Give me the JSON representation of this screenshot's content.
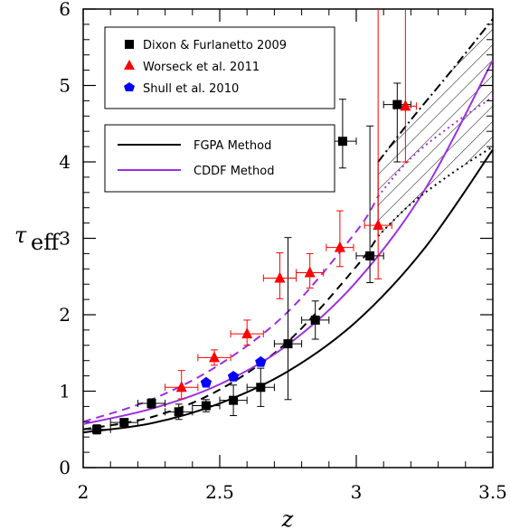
{
  "chart_data": {
    "type": "scatter",
    "xlabel": "z",
    "ylabel_main": "τ",
    "ylabel_sub": "eff",
    "xlim": [
      2.0,
      3.5
    ],
    "ylim": [
      0,
      6
    ],
    "xticks": [
      2,
      2.5,
      3,
      3.5
    ],
    "xtick_labels": [
      "2",
      "2.5",
      "3",
      "3.5"
    ],
    "yticks": [
      0,
      1,
      2,
      3,
      4,
      5,
      6
    ],
    "ytick_labels": [
      "0",
      "1",
      "2",
      "3",
      "4",
      "5",
      "6"
    ],
    "grid": false,
    "legend_points": {
      "placement": "top-left",
      "entries": [
        {
          "label": "Dixon & Furlanetto 2009",
          "marker": "square",
          "color": "#000000"
        },
        {
          "label": "Worseck et al. 2011",
          "marker": "triangle",
          "color": "#ff0000"
        },
        {
          "label": "Shull et al. 2010",
          "marker": "pentagon",
          "color": "#0000ff"
        }
      ]
    },
    "legend_lines": {
      "placement": "upper-left",
      "entries": [
        {
          "label": "FGPA Method",
          "color": "#000000"
        },
        {
          "label": "CDDF Method",
          "color": "#9b30e0"
        }
      ]
    },
    "series": [
      {
        "name": "Dixon & Furlanetto 2009",
        "marker": "square",
        "color": "#000000",
        "points": [
          {
            "x": 2.05,
            "y": 0.5,
            "xerr": 0.05,
            "yerr": [
              0.06,
              0.06
            ]
          },
          {
            "x": 2.15,
            "y": 0.59,
            "xerr": 0.05,
            "yerr": [
              0.05,
              0.05
            ]
          },
          {
            "x": 2.25,
            "y": 0.84,
            "xerr": 0.05,
            "yerr": [
              0.06,
              0.06
            ]
          },
          {
            "x": 2.35,
            "y": 0.73,
            "xerr": 0.05,
            "yerr": [
              0.1,
              0.1
            ]
          },
          {
            "x": 2.45,
            "y": 0.81,
            "xerr": 0.05,
            "yerr": [
              0.08,
              0.08
            ]
          },
          {
            "x": 2.55,
            "y": 0.88,
            "xerr": 0.05,
            "yerr": [
              0.2,
              0.2
            ]
          },
          {
            "x": 2.65,
            "y": 1.05,
            "xerr": 0.05,
            "yerr": [
              0.25,
              0.25
            ]
          },
          {
            "x": 2.75,
            "y": 1.62,
            "xerr": 0.05,
            "yerr": [
              0.73,
              1.39
            ]
          },
          {
            "x": 2.85,
            "y": 1.93,
            "xerr": 0.05,
            "yerr": [
              0.25,
              0.25
            ]
          },
          {
            "x": 2.95,
            "y": 4.27,
            "xerr": 0.05,
            "yerr": [
              0.35,
              0.55
            ]
          },
          {
            "x": 3.05,
            "y": 2.77,
            "xerr": 0.05,
            "yerr": [
              0.35,
              1.7
            ]
          },
          {
            "x": 3.15,
            "y": 4.75,
            "xerr": 0.05,
            "yerr": [
              0.75,
              0.28
            ]
          }
        ]
      },
      {
        "name": "Worseck et al. 2011",
        "marker": "triangle",
        "color": "#ff0000",
        "points": [
          {
            "x": 2.36,
            "y": 1.05,
            "xerr": 0.06,
            "yerr": [
              0.15,
              0.22
            ]
          },
          {
            "x": 2.48,
            "y": 1.44,
            "xerr": 0.06,
            "yerr": [
              0.1,
              0.1
            ]
          },
          {
            "x": 2.6,
            "y": 1.75,
            "xerr": 0.06,
            "yerr": [
              0.15,
              0.18
            ]
          },
          {
            "x": 2.72,
            "y": 2.48,
            "xerr": 0.06,
            "yerr": [
              0.27,
              0.33
            ]
          },
          {
            "x": 2.83,
            "y": 2.55,
            "xerr": 0.05,
            "yerr": [
              0.2,
              0.25
            ]
          },
          {
            "x": 2.94,
            "y": 2.88,
            "xerr": 0.05,
            "yerr": [
              0.25,
              0.48
            ]
          },
          {
            "x": 3.08,
            "y": 3.17,
            "xerr": 0.05,
            "yerr": [
              0.7,
              3.0
            ]
          },
          {
            "x": 3.18,
            "y": 4.73,
            "xerr": 0.04,
            "yerr": [
              0.73,
              1.5
            ]
          }
        ]
      },
      {
        "name": "Shull et al. 2010",
        "marker": "pentagon",
        "color": "#0000ff",
        "points": [
          {
            "x": 2.45,
            "y": 1.11
          },
          {
            "x": 2.55,
            "y": 1.19
          },
          {
            "x": 2.65,
            "y": 1.38
          }
        ]
      }
    ],
    "curves": [
      {
        "name": "FGPA Method",
        "color": "#000000",
        "style": "solid",
        "x": [
          2.0,
          2.25,
          2.5,
          2.75,
          3.0,
          3.25,
          3.5
        ],
        "y": [
          0.46,
          0.58,
          0.84,
          1.26,
          1.91,
          2.87,
          4.16
        ]
      },
      {
        "name": "FGPA Method",
        "color": "#000000",
        "style": "dashed",
        "x": [
          2.0,
          2.25,
          2.5,
          2.75,
          3.0,
          3.08
        ],
        "y": [
          0.5,
          0.66,
          1.02,
          1.65,
          2.63,
          3.03
        ]
      },
      {
        "name": "CDDF Method",
        "color": "#9b30e0",
        "style": "solid",
        "x": [
          2.0,
          2.25,
          2.5,
          2.75,
          3.0,
          3.25,
          3.5
        ],
        "y": [
          0.57,
          0.77,
          1.09,
          1.61,
          2.43,
          3.63,
          5.33
        ]
      },
      {
        "name": "CDDF Method",
        "color": "#9b30e0",
        "style": "dashed",
        "x": [
          2.0,
          2.25,
          2.5,
          2.75,
          3.0,
          3.08
        ],
        "y": [
          0.6,
          0.89,
          1.35,
          2.04,
          3.09,
          3.55
        ]
      },
      {
        "name": "CDDF Method",
        "color": "#9b30e0",
        "style": "dotted",
        "x": [
          3.08,
          3.2,
          3.35,
          3.5
        ],
        "y": [
          3.55,
          4.05,
          4.48,
          4.85
        ]
      },
      {
        "name": "FGPA Method",
        "color": "#000000",
        "style": "dotted",
        "x": [
          3.08,
          3.2,
          3.35,
          3.5
        ],
        "y": [
          3.03,
          3.45,
          3.85,
          4.2
        ]
      },
      {
        "name": "FGPA Method",
        "color": "#000000",
        "style": "dashdot",
        "x": [
          3.08,
          3.2,
          3.35,
          3.5
        ],
        "y": [
          4.0,
          4.55,
          5.2,
          5.87
        ]
      }
    ],
    "hatched_band": {
      "x": [
        3.08,
        3.2,
        3.35,
        3.5
      ],
      "upper": [
        4.0,
        4.55,
        5.2,
        5.87
      ],
      "lower": [
        3.03,
        3.45,
        3.85,
        4.2
      ]
    }
  }
}
